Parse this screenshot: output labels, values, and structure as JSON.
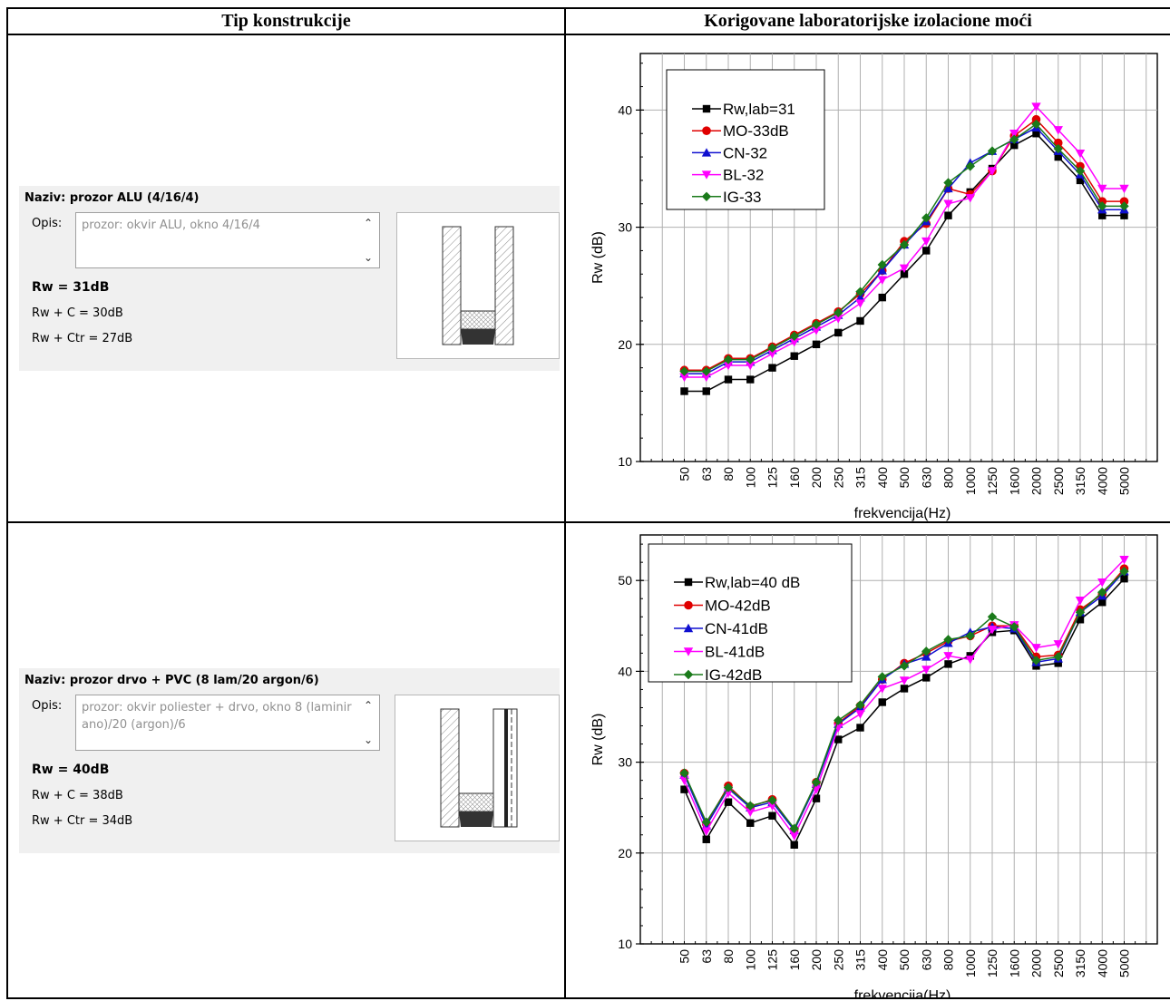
{
  "headers": {
    "left": "Tip konstrukcije",
    "right": "Korigovane laboratorijske izolacione moći"
  },
  "rows": [
    {
      "title": "Naziv:  prozor ALU (4/16/4)",
      "opis_label": "Opis:",
      "opis_text": "prozor: okvir ALU, okno 4/16/4",
      "rw": "Rw = 31dB",
      "rw_c": "Rw + C = 30dB",
      "rw_ctr": "Rw + Ctr = 27dB",
      "diagram_icon": "window-section-diagram"
    },
    {
      "title": "Naziv:  prozor drvo + PVC (8 lam/20 argon/6)",
      "opis_label": "Opis:",
      "opis_text": "prozor: okvir poliester + drvo, okno 8 (laminirano)/20 (argon)/6",
      "rw": "Rw = 40dB",
      "rw_c": "Rw + C = 38dB",
      "rw_ctr": "Rw + Ctr = 34dB",
      "diagram_icon": "window-section-diagram-laminated"
    }
  ],
  "chart_data": [
    {
      "type": "line",
      "xlabel": "frekvencija(Hz)",
      "ylabel": "Rw (dB)",
      "ylim": [
        10,
        45
      ],
      "yticks": [
        10,
        20,
        30,
        40
      ],
      "grid": true,
      "legend_position": "top-left",
      "categories": [
        "50",
        "63",
        "80",
        "100",
        "125",
        "160",
        "200",
        "250",
        "315",
        "400",
        "500",
        "630",
        "800",
        "1000",
        "1250",
        "1600",
        "2000",
        "2500",
        "3150",
        "4000",
        "5000"
      ],
      "series": [
        {
          "name": "Rw,lab=31",
          "color": "#000000",
          "marker": "square",
          "values": [
            16,
            16,
            17,
            17,
            18,
            19,
            20,
            21,
            22,
            24,
            26,
            28,
            31,
            33,
            35,
            37,
            38,
            36,
            34,
            31,
            31
          ]
        },
        {
          "name": "MO-33dB",
          "color": "#e00000",
          "marker": "circle",
          "values": [
            17.8,
            17.8,
            18.8,
            18.8,
            19.8,
            20.8,
            21.8,
            22.8,
            24.3,
            26.3,
            28.8,
            30.3,
            33.3,
            32.8,
            34.8,
            37.8,
            39.2,
            37.2,
            35.2,
            32.2,
            32.2
          ]
        },
        {
          "name": "CN-32",
          "color": "#1010d0",
          "marker": "triangle-up",
          "values": [
            17.5,
            17.5,
            18.5,
            18.5,
            19.5,
            20.5,
            21.5,
            22.5,
            24,
            26.3,
            28.5,
            30.5,
            33.3,
            35.5,
            36.5,
            37.5,
            38.5,
            36.5,
            34.5,
            31.5,
            31.5
          ]
        },
        {
          "name": "BL-32",
          "color": "#ff00ff",
          "marker": "triangle-down",
          "values": [
            17.2,
            17.2,
            18.2,
            18.2,
            19.2,
            20.2,
            21.2,
            22.2,
            23.5,
            25.5,
            26.5,
            28.8,
            32,
            32.5,
            34.8,
            38,
            40.3,
            38.3,
            36.3,
            33.3,
            33.3
          ]
        },
        {
          "name": "IG-33",
          "color": "#1a7a1a",
          "marker": "diamond",
          "values": [
            17.7,
            17.7,
            18.7,
            18.7,
            19.7,
            20.7,
            21.7,
            22.7,
            24.5,
            26.8,
            28.5,
            30.8,
            33.8,
            35.2,
            36.5,
            37.5,
            38.8,
            36.7,
            34.8,
            31.8,
            31.8
          ]
        }
      ]
    },
    {
      "type": "line",
      "xlabel": "frekvencija(Hz)",
      "ylabel": "Rw (dB)",
      "ylim": [
        10,
        55
      ],
      "yticks": [
        10,
        20,
        30,
        40,
        50
      ],
      "grid": true,
      "legend_position": "top-left",
      "categories": [
        "50",
        "63",
        "80",
        "100",
        "125",
        "160",
        "200",
        "250",
        "315",
        "400",
        "500",
        "630",
        "800",
        "1000",
        "1250",
        "1600",
        "2000",
        "2500",
        "3150",
        "4000",
        "5000"
      ],
      "series": [
        {
          "name": "Rw,lab=40 dB",
          "color": "#000000",
          "marker": "square",
          "values": [
            27,
            21.5,
            25.6,
            23.3,
            24.1,
            20.9,
            26,
            32.5,
            33.8,
            36.6,
            38.1,
            39.3,
            40.8,
            41.7,
            44.3,
            44.5,
            40.6,
            40.9,
            45.7,
            47.6,
            50.2
          ]
        },
        {
          "name": "MO-42dB",
          "color": "#e00000",
          "marker": "circle",
          "values": [
            28.8,
            23.2,
            27.4,
            25.1,
            25.9,
            22.6,
            27.8,
            34.3,
            36.2,
            39.1,
            40.9,
            42,
            43.3,
            43.9,
            45,
            45,
            41.6,
            41.8,
            46.8,
            48.5,
            51.3
          ]
        },
        {
          "name": "CN-41dB",
          "color": "#1010d0",
          "marker": "triangle-up",
          "values": [
            28.6,
            23,
            27.1,
            25,
            25.6,
            22.5,
            27.6,
            34.2,
            36,
            39.1,
            40.8,
            41.6,
            43.1,
            44.3,
            44.9,
            44.7,
            41,
            41.4,
            46.5,
            48.3,
            51
          ]
        },
        {
          "name": "BL-41dB",
          "color": "#ff00ff",
          "marker": "triangle-down",
          "values": [
            28,
            22.4,
            26.6,
            24.5,
            25.2,
            21.9,
            27,
            33.8,
            35.3,
            38.1,
            39,
            40.2,
            41.7,
            41.3,
            44.6,
            45.1,
            42.6,
            43,
            47.8,
            49.8,
            52.3
          ]
        },
        {
          "name": "IG-42dB",
          "color": "#1a7a1a",
          "marker": "diamond",
          "values": [
            28.8,
            23.4,
            27.2,
            25.2,
            25.8,
            22.7,
            27.8,
            34.6,
            36.3,
            39.4,
            40.6,
            42.2,
            43.5,
            43.9,
            46,
            44.9,
            41.2,
            41.6,
            46.5,
            48.7,
            51
          ]
        }
      ]
    }
  ]
}
